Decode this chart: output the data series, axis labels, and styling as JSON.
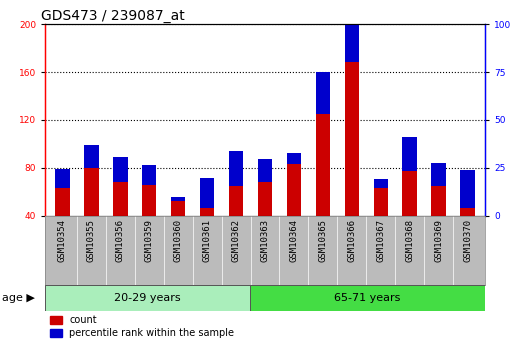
{
  "title": "GDS473 / 239087_at",
  "samples": [
    "GSM10354",
    "GSM10355",
    "GSM10356",
    "GSM10359",
    "GSM10360",
    "GSM10361",
    "GSM10362",
    "GSM10363",
    "GSM10364",
    "GSM10365",
    "GSM10366",
    "GSM10367",
    "GSM10368",
    "GSM10369",
    "GSM10370"
  ],
  "count_values": [
    63,
    80,
    68,
    66,
    52,
    46,
    65,
    68,
    83,
    125,
    168,
    63,
    77,
    65,
    46
  ],
  "percentile_values": [
    10,
    12,
    13,
    10,
    2,
    16,
    18,
    12,
    6,
    22,
    40,
    5,
    18,
    12,
    20
  ],
  "group1_label": "20-29 years",
  "group2_label": "65-71 years",
  "group1_count": 7,
  "group2_count": 8,
  "age_label": "age",
  "ylim_left": [
    40,
    200
  ],
  "ylim_right": [
    0,
    100
  ],
  "yticks_left": [
    40,
    80,
    120,
    160,
    200
  ],
  "yticks_right": [
    0,
    25,
    50,
    75,
    100
  ],
  "bar_color_count": "#cc0000",
  "bar_color_pct": "#0000cc",
  "legend_count": "count",
  "legend_pct": "percentile rank within the sample",
  "bg_plot": "#ffffff",
  "bg_xtick": "#bbbbbb",
  "bg_group1": "#aaeebb",
  "bg_group2": "#44dd44",
  "bar_width": 0.5,
  "title_fontsize": 10,
  "tick_fontsize": 6.5,
  "label_fontsize": 8
}
